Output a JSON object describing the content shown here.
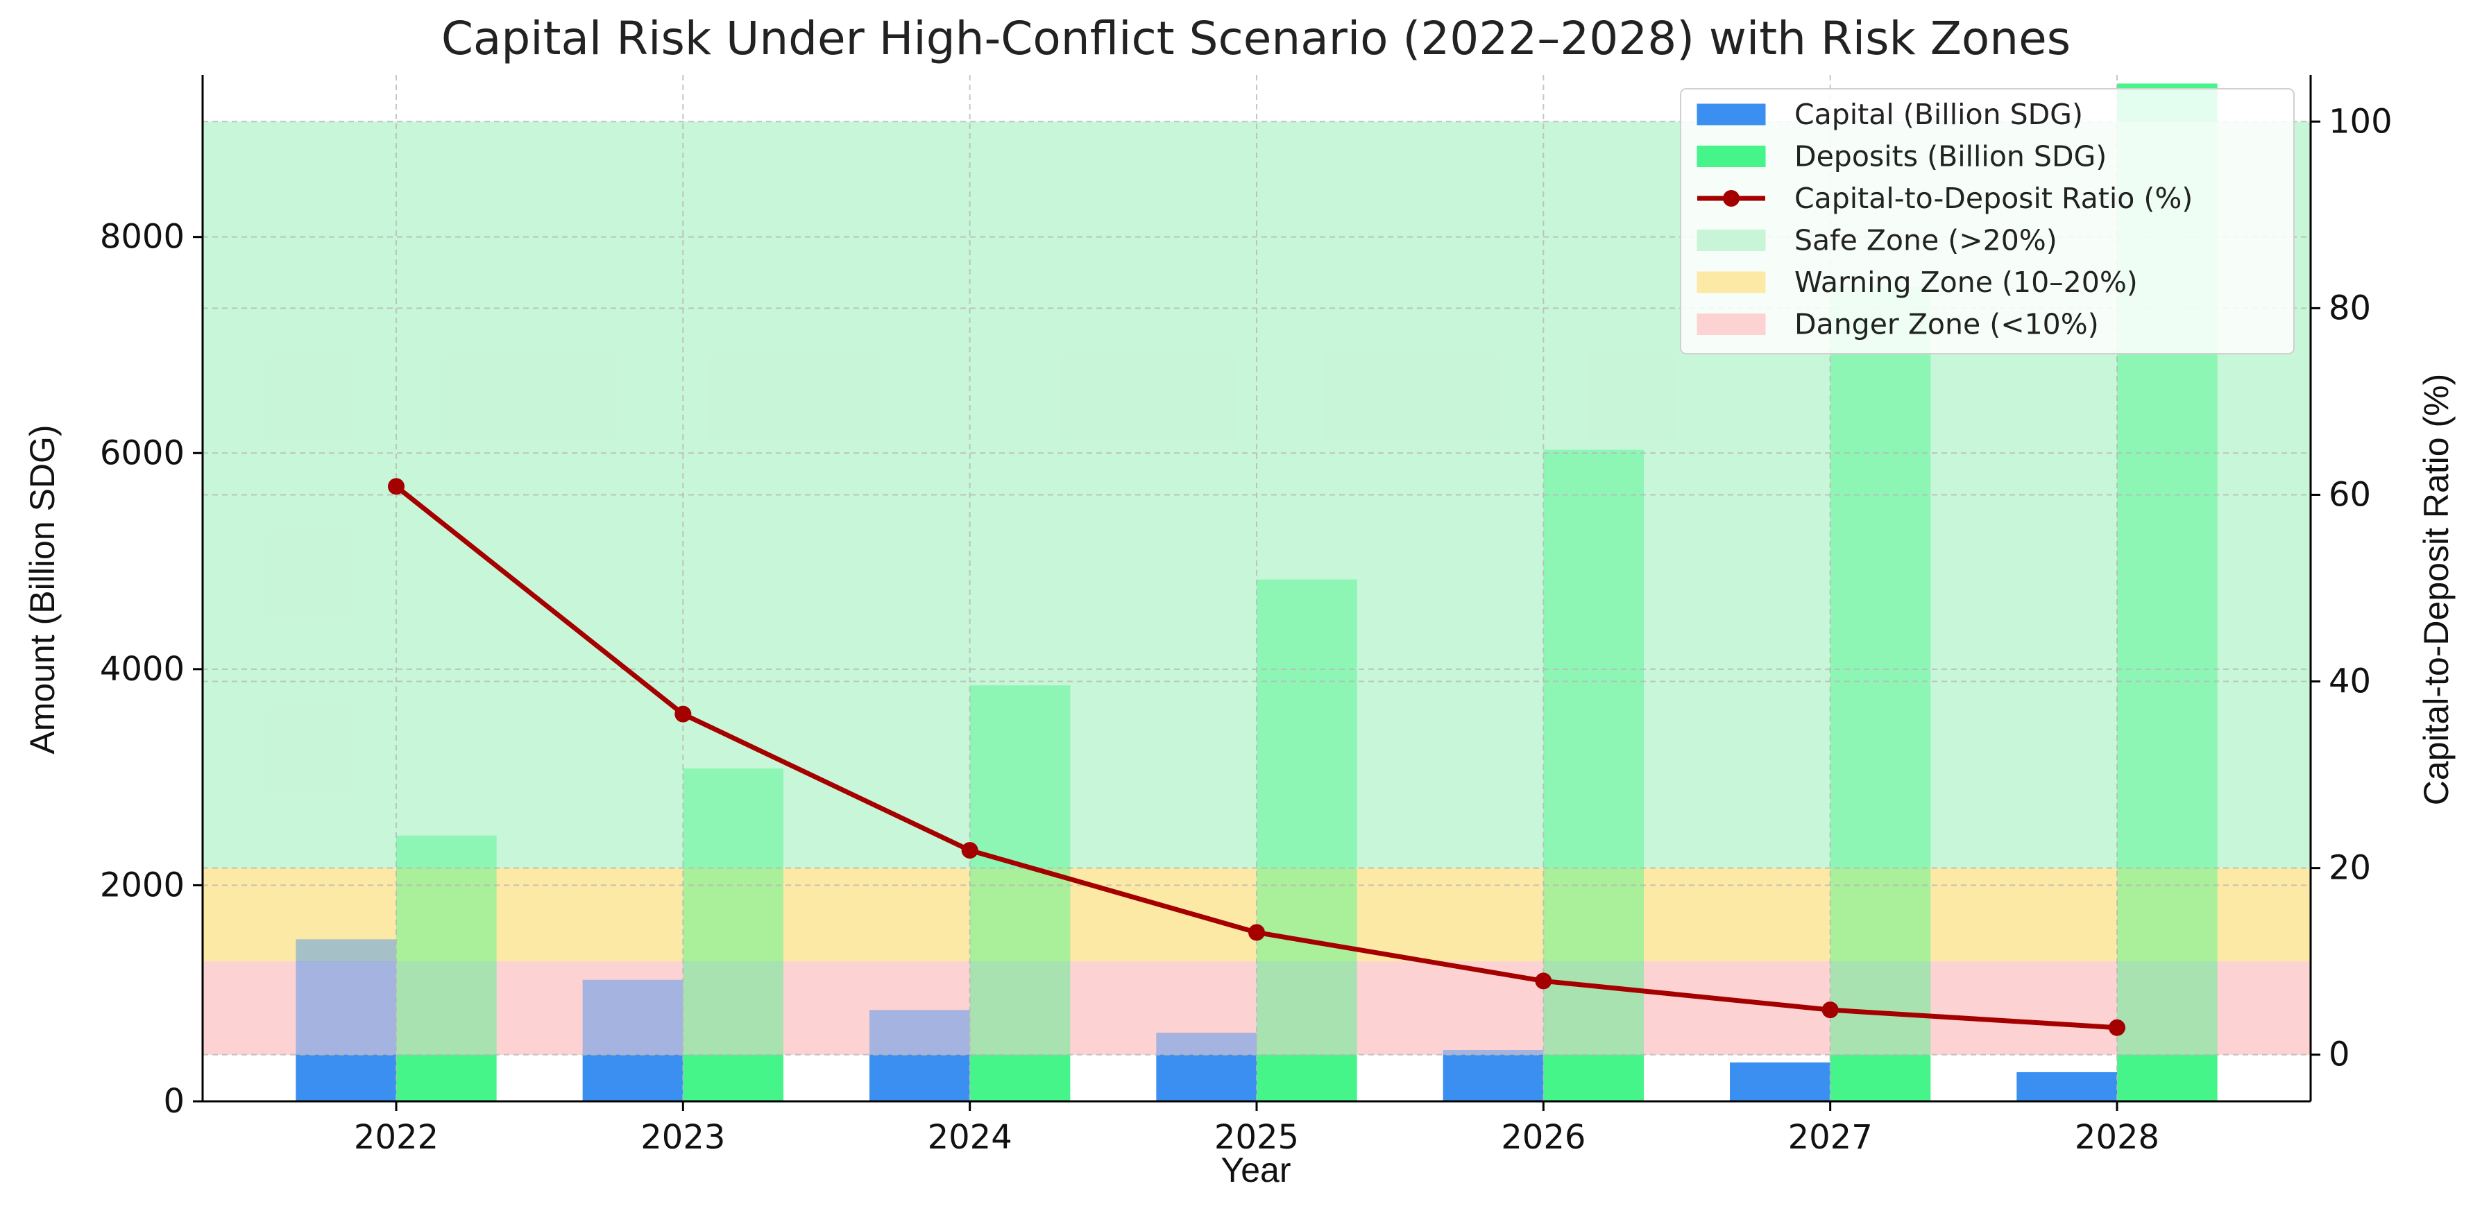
{
  "chart_data": {
    "type": "bar",
    "title": "Capital Risk Under High-Conflict Scenario (2022–2028) with Risk Zones",
    "xlabel": "Year",
    "ylabel": "Amount (Billion SDG)",
    "y2label": "Capital-to-Deposit Ratio (%)",
    "categories": [
      "2022",
      "2023",
      "2024",
      "2025",
      "2026",
      "2027",
      "2028"
    ],
    "ylim": [
      0,
      9500
    ],
    "yticks": [
      0,
      2000,
      4000,
      6000,
      8000
    ],
    "y2lim": [
      -5,
      105
    ],
    "y2ticks": [
      0,
      20,
      40,
      60,
      80,
      100
    ],
    "grid": true,
    "legend_position": "top-right",
    "series": [
      {
        "name": "Capital (Billion SDG)",
        "kind": "bar",
        "axis": "left",
        "color": "#3b8ff0",
        "values": [
          1500,
          1125,
          845,
          635,
          475,
          360,
          270
        ]
      },
      {
        "name": "Deposits (Billion SDG)",
        "kind": "bar",
        "axis": "left",
        "color": "#45f58a",
        "values": [
          2460,
          3080,
          3850,
          4830,
          6030,
          7540,
          9420
        ]
      },
      {
        "name": "Capital-to-Deposit Ratio (%)",
        "kind": "line",
        "axis": "right",
        "color": "#a50000",
        "values": [
          60.9,
          36.5,
          21.9,
          13.1,
          7.9,
          4.8,
          2.9
        ]
      }
    ],
    "zones": [
      {
        "name": "Safe Zone (>20%)",
        "y2_from": 20,
        "y2_to": 100,
        "color": "#c8f5d8"
      },
      {
        "name": "Warning Zone (10–20%)",
        "y2_from": 10,
        "y2_to": 20,
        "color": "#fde9a6"
      },
      {
        "name": "Danger Zone (<10%)",
        "y2_from": 0,
        "y2_to": 10,
        "color": "#fcd2d2"
      }
    ]
  }
}
